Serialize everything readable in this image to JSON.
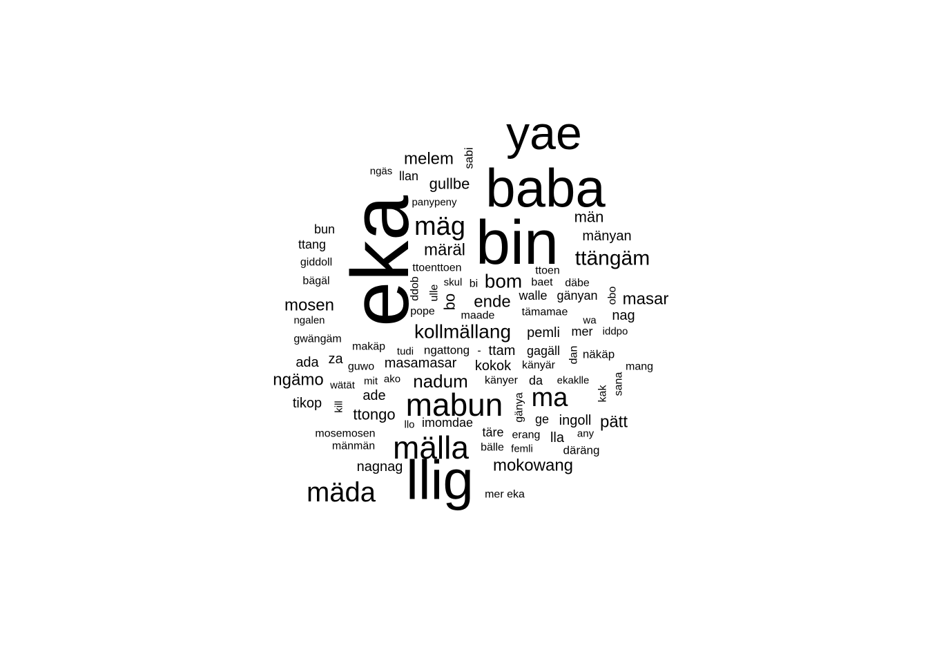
{
  "chart_data": {
    "type": "wordcloud",
    "title": "",
    "color": "#000000",
    "words": [
      {
        "text": "eka",
        "rotated": true
      },
      {
        "text": "bin"
      },
      {
        "text": "baba"
      },
      {
        "text": "llig"
      },
      {
        "text": "yae"
      },
      {
        "text": "mabun"
      },
      {
        "text": "mälla"
      },
      {
        "text": "mäda"
      },
      {
        "text": "ma"
      },
      {
        "text": "mäg"
      },
      {
        "text": "kollmällang"
      },
      {
        "text": "ttängäm"
      },
      {
        "text": "bom"
      },
      {
        "text": "masar"
      },
      {
        "text": "nadum"
      },
      {
        "text": "ende"
      },
      {
        "text": "mokowang"
      },
      {
        "text": "märäl"
      },
      {
        "text": "melem"
      },
      {
        "text": "mosen"
      },
      {
        "text": "pätt"
      },
      {
        "text": "ngämo"
      },
      {
        "text": "gullbe"
      },
      {
        "text": "ttongo"
      },
      {
        "text": "masamasar"
      },
      {
        "text": "mänyan"
      },
      {
        "text": "män"
      },
      {
        "text": "nagnag"
      },
      {
        "text": "kokok"
      },
      {
        "text": "ttam"
      },
      {
        "text": "pemli"
      },
      {
        "text": "tikop"
      },
      {
        "text": "nag"
      },
      {
        "text": "ade"
      },
      {
        "text": "mer"
      },
      {
        "text": "ingoll"
      },
      {
        "text": "lla"
      },
      {
        "text": "gagäll"
      },
      {
        "text": "ada"
      },
      {
        "text": "llan"
      },
      {
        "text": "ttang"
      },
      {
        "text": "bo",
        "rotated": true
      },
      {
        "text": "täre"
      },
      {
        "text": "ge"
      },
      {
        "text": "da"
      },
      {
        "text": "za"
      },
      {
        "text": "imomdae"
      },
      {
        "text": "mosemosen"
      },
      {
        "text": "sabi",
        "rotated": true
      },
      {
        "text": "gänyan"
      },
      {
        "text": "walle"
      },
      {
        "text": "ngattong"
      },
      {
        "text": "bun"
      },
      {
        "text": "giddoll"
      },
      {
        "text": "bägäl"
      },
      {
        "text": "ttoen"
      },
      {
        "text": "ttoenttoen"
      },
      {
        "text": "makäp"
      },
      {
        "text": "näkäp"
      },
      {
        "text": "känyer"
      },
      {
        "text": "känyär"
      },
      {
        "text": "gwängäm"
      },
      {
        "text": "mänmän"
      },
      {
        "text": "pope"
      },
      {
        "text": "maade"
      },
      {
        "text": "tämamae"
      },
      {
        "text": "erang"
      },
      {
        "text": "ekaklle"
      },
      {
        "text": "däräng"
      },
      {
        "text": "bälle"
      },
      {
        "text": "mer eka"
      },
      {
        "text": "gänya",
        "rotated": true
      },
      {
        "text": "ulle",
        "rotated": true
      },
      {
        "text": "ddob",
        "rotated": true
      },
      {
        "text": "obo",
        "rotated": true
      },
      {
        "text": "dan",
        "rotated": true
      },
      {
        "text": "sana",
        "rotated": true
      },
      {
        "text": "kak",
        "rotated": true
      },
      {
        "text": "kill",
        "rotated": true
      },
      {
        "text": "mang"
      },
      {
        "text": "baet"
      },
      {
        "text": "däbe"
      },
      {
        "text": "skul"
      },
      {
        "text": "bi"
      },
      {
        "text": "tudi"
      },
      {
        "text": "ngalen"
      },
      {
        "text": "ngäs"
      },
      {
        "text": "panypeny"
      },
      {
        "text": "guwo"
      },
      {
        "text": "wätät"
      },
      {
        "text": "mit"
      },
      {
        "text": "ako"
      },
      {
        "text": "llo"
      },
      {
        "text": "femli"
      },
      {
        "text": "any"
      },
      {
        "text": "wa"
      },
      {
        "text": "iddpo"
      },
      {
        "text": "-"
      }
    ]
  }
}
